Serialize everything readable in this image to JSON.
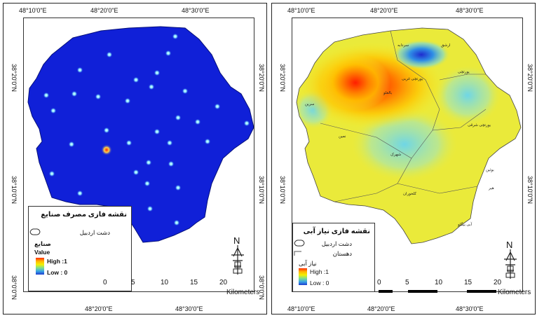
{
  "left_map": {
    "top_coords": [
      "48°10'0\"E",
      "48°20'0\"E",
      "48°30'0\"E"
    ],
    "bottom_coords": [
      "48°20'0\"E",
      "48°30'0\"E"
    ],
    "left_coords": [
      "38°20'0\"N",
      "38°10'0\"N",
      "38°0'0\"N"
    ],
    "right_coords": [
      "38°20'0\"N",
      "38°10'0\"N",
      "38°0'0\"N"
    ],
    "legend": {
      "title": "نقشه فازی مصرف صنایع",
      "plain_label": "دشت اردبیل",
      "layer_label": "صنایع",
      "value_label": "Value",
      "high_label": "High :1",
      "low_label": "Low : 0"
    },
    "fill_color": "#1020d8",
    "scale": {
      "ticks": [
        "0",
        "5",
        "10",
        "15",
        "20"
      ],
      "unit": "Kilometers"
    },
    "north_label": "N"
  },
  "right_map": {
    "top_coords": [
      "48°10'0\"E",
      "48°20'0\"E",
      "48°30'0\"E"
    ],
    "bottom_coords": [
      "48°10'0\"E",
      "48°20'0\"E",
      "48°30'0\"E"
    ],
    "left_coords": [
      "38°20'0\"N",
      "38°10'0\"N"
    ],
    "right_coords": [
      "38°20'0\"N",
      "38°10'0\"N"
    ],
    "legend": {
      "title": "نقشه فازی نیاز آبی",
      "plain_label": "دشت اردبیل",
      "district_label": "دهستان",
      "layer_label": "نیاز آبی",
      "high_label": "High :1",
      "low_label": "Low : 0"
    },
    "scale": {
      "ticks": [
        "0",
        "5",
        "10",
        "15",
        "20"
      ],
      "unit": "Kilometers"
    },
    "north_label": "N",
    "district_names": [
      "سردابه",
      "ارشق",
      "بالغلو",
      "یورتچی",
      "سرین",
      "یورتچی شرقی",
      "نمین",
      "شهرک",
      "کلخوران",
      "بوئین",
      "آبی بیگلو",
      "یورتچی غربی",
      "هیر"
    ]
  }
}
